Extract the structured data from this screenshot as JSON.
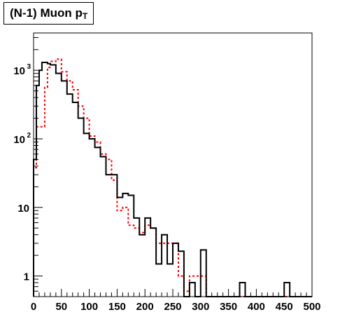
{
  "chart_data": {
    "type": "line",
    "title": "(N-1) Muon p",
    "title_subscript": "T",
    "xlabel": "",
    "ylabel": "",
    "xlim": [
      0,
      500
    ],
    "ylim": [
      0.5,
      3500
    ],
    "y_scale": "log",
    "grid": false,
    "legend": "none",
    "bin_width": 10,
    "x_ticks": [
      0,
      50,
      100,
      150,
      200,
      250,
      300,
      350,
      400,
      450,
      500
    ],
    "y_ticks": [
      {
        "value": 1,
        "label": "1"
      },
      {
        "value": 10,
        "label": "10"
      },
      {
        "value": 100,
        "label": "10",
        "exp": "2"
      },
      {
        "value": 1000,
        "label": "10",
        "exp": "3"
      }
    ],
    "series": [
      {
        "color": "#000000",
        "style": "solid",
        "bin_edges": [
          0,
          5,
          10,
          15,
          20,
          25,
          30,
          40,
          50,
          60,
          70,
          80,
          90,
          100,
          110,
          120,
          130,
          140,
          150,
          160,
          170,
          180,
          190,
          200,
          210,
          220,
          230,
          240,
          250,
          260,
          270,
          280,
          290,
          300,
          310,
          320,
          370,
          380,
          450,
          460,
          500
        ],
        "values": [
          50,
          600,
          1000,
          1300,
          1300,
          1250,
          1200,
          900,
          700,
          450,
          340,
          200,
          120,
          100,
          75,
          55,
          30,
          30,
          14,
          16,
          15,
          7,
          4,
          7,
          5,
          1.5,
          4,
          1.5,
          3,
          2.3,
          0.5,
          0.8,
          0.5,
          2.4,
          0.5,
          0.5,
          0.8,
          0.5,
          0.8,
          0.5
        ]
      },
      {
        "color": "#ff0000",
        "style": "dashed",
        "bin_edges": [
          0,
          5,
          10,
          15,
          20,
          25,
          30,
          40,
          50,
          60,
          70,
          80,
          90,
          100,
          110,
          120,
          130,
          140,
          150,
          160,
          170,
          180,
          190,
          200,
          210,
          220,
          230,
          240,
          250,
          260,
          270,
          280,
          290,
          300,
          310,
          320,
          500
        ],
        "values": [
          38,
          150,
          150,
          150,
          560,
          1100,
          1350,
          1450,
          950,
          700,
          520,
          300,
          200,
          110,
          90,
          60,
          50,
          25,
          9,
          10,
          5.5,
          5,
          4.3,
          5.5,
          5,
          3,
          3,
          3,
          3,
          1,
          0.6,
          1,
          1,
          1,
          0.5,
          0.5
        ]
      }
    ]
  }
}
